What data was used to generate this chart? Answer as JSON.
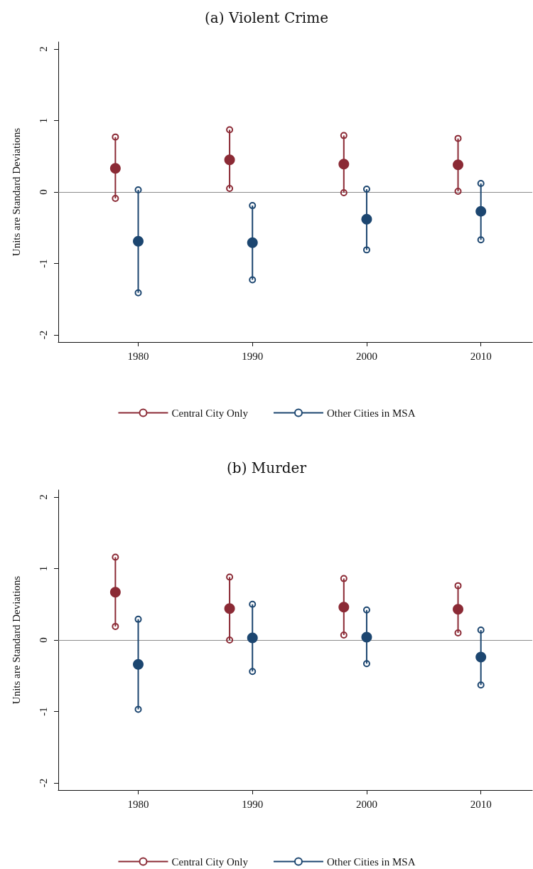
{
  "chart_data": [
    {
      "type": "scatter",
      "title": "(a) Violent Crime",
      "ylabel": "Units are Standard Deviations",
      "xlim": [
        1973,
        2014.5
      ],
      "xticks": [
        1980,
        1990,
        2000,
        2010
      ],
      "ylim": [
        -2.1,
        2.1
      ],
      "yticks": [
        -2,
        -1,
        0,
        1,
        2
      ],
      "grid": false,
      "legend": "bottom",
      "marker": "circle",
      "ref_lines": [
        {
          "axis": "y",
          "value": 0,
          "color": "#8c8c8c"
        }
      ],
      "series": [
        {
          "name": "Central City Only",
          "color": "#8b2a35",
          "x": [
            1978,
            1988,
            1998,
            2008
          ],
          "values": [
            0.33,
            0.45,
            0.39,
            0.38
          ],
          "errors": [
            [
              -0.09,
              0.77
            ],
            [
              0.05,
              0.87
            ],
            [
              -0.01,
              0.79
            ],
            [
              0.01,
              0.75
            ]
          ]
        },
        {
          "name": "Other Cities in MSA",
          "color": "#1c4670",
          "x": [
            1980,
            1990,
            2000,
            2010
          ],
          "values": [
            -0.69,
            -0.71,
            -0.38,
            -0.27
          ],
          "errors": [
            [
              -1.41,
              0.03
            ],
            [
              -1.23,
              -0.19
            ],
            [
              -0.81,
              0.04
            ],
            [
              -0.67,
              0.12
            ]
          ]
        }
      ]
    },
    {
      "type": "scatter",
      "title": "(b) Murder",
      "ylabel": "Units are Standard Deviations",
      "xlim": [
        1973,
        2014.5
      ],
      "xticks": [
        1980,
        1990,
        2000,
        2010
      ],
      "ylim": [
        -2.1,
        2.1
      ],
      "yticks": [
        -2,
        -1,
        0,
        1,
        2
      ],
      "grid": false,
      "legend": "bottom",
      "marker": "circle",
      "ref_lines": [
        {
          "axis": "y",
          "value": 0,
          "color": "#8c8c8c"
        }
      ],
      "series": [
        {
          "name": "Central City Only",
          "color": "#8b2a35",
          "x": [
            1978,
            1988,
            1998,
            2008
          ],
          "values": [
            0.67,
            0.44,
            0.46,
            0.43
          ],
          "errors": [
            [
              0.19,
              1.16
            ],
            [
              0.0,
              0.88
            ],
            [
              0.07,
              0.86
            ],
            [
              0.1,
              0.76
            ]
          ]
        },
        {
          "name": "Other Cities in MSA",
          "color": "#1c4670",
          "x": [
            1980,
            1990,
            2000,
            2010
          ],
          "values": [
            -0.34,
            0.03,
            0.04,
            -0.24
          ],
          "errors": [
            [
              -0.97,
              0.29
            ],
            [
              -0.44,
              0.5
            ],
            [
              -0.33,
              0.42
            ],
            [
              -0.63,
              0.14
            ]
          ]
        }
      ]
    }
  ]
}
